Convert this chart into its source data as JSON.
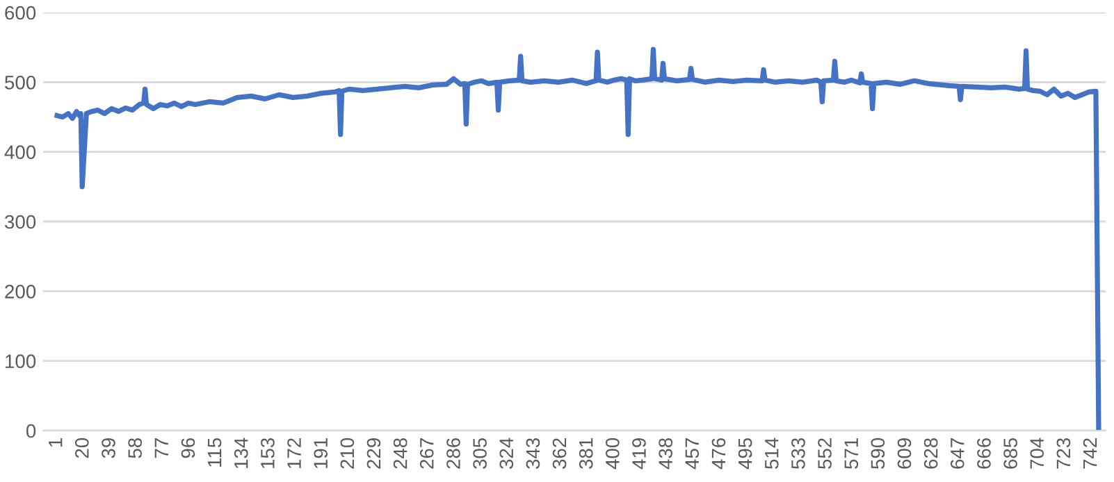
{
  "chart_data": {
    "type": "line",
    "x": [
      1,
      5,
      9,
      12,
      15,
      17,
      18,
      19,
      22,
      26,
      30,
      35,
      40,
      45,
      50,
      55,
      60,
      63,
      64,
      65,
      70,
      75,
      80,
      85,
      90,
      95,
      100,
      110,
      120,
      130,
      140,
      150,
      160,
      170,
      180,
      190,
      200,
      203,
      204,
      205,
      210,
      220,
      230,
      240,
      250,
      260,
      270,
      280,
      285,
      290,
      293,
      294,
      295,
      300,
      305,
      310,
      316,
      317,
      318,
      325,
      332,
      333,
      334,
      340,
      350,
      360,
      370,
      380,
      387,
      388,
      389,
      395,
      400,
      405,
      409,
      410,
      411,
      415,
      420,
      427,
      428,
      429,
      434,
      435,
      436,
      445,
      454,
      455,
      456,
      465,
      475,
      485,
      495,
      506,
      507,
      508,
      515,
      525,
      535,
      545,
      548,
      549,
      550,
      557,
      558,
      559,
      565,
      570,
      576,
      577,
      578,
      584,
      585,
      586,
      595,
      605,
      615,
      625,
      635,
      640,
      647,
      648,
      649,
      660,
      670,
      680,
      690,
      694,
      695,
      696,
      700,
      705,
      710,
      715,
      720,
      725,
      730,
      735,
      740,
      745,
      747
    ],
    "values": [
      452,
      450,
      455,
      448,
      458,
      452,
      455,
      350,
      455,
      458,
      460,
      455,
      462,
      458,
      463,
      460,
      468,
      470,
      490,
      468,
      462,
      468,
      466,
      470,
      465,
      470,
      468,
      472,
      470,
      478,
      480,
      476,
      482,
      478,
      480,
      484,
      486,
      488,
      425,
      487,
      490,
      488,
      490,
      492,
      494,
      492,
      496,
      497,
      505,
      497,
      498,
      440,
      497,
      500,
      502,
      498,
      500,
      460,
      500,
      502,
      503,
      537,
      502,
      500,
      502,
      500,
      503,
      498,
      502,
      543,
      503,
      500,
      503,
      505,
      503,
      425,
      505,
      502,
      503,
      505,
      547,
      505,
      503,
      527,
      505,
      502,
      504,
      520,
      504,
      500,
      503,
      501,
      503,
      502,
      518,
      503,
      500,
      502,
      500,
      503,
      500,
      472,
      502,
      503,
      530,
      502,
      500,
      503,
      499,
      512,
      500,
      498,
      462,
      498,
      500,
      497,
      502,
      498,
      496,
      495,
      494,
      475,
      494,
      493,
      492,
      493,
      490,
      491,
      545,
      490,
      488,
      487,
      482,
      490,
      480,
      484,
      478,
      482,
      486,
      487,
      0
    ],
    "color": "#4472c4",
    "xlim": [
      -9,
      752
    ],
    "ylim": [
      0,
      600
    ],
    "yticks": [
      0,
      100,
      200,
      300,
      400,
      500,
      600
    ],
    "xticks": [
      1,
      20,
      39,
      58,
      77,
      96,
      115,
      134,
      153,
      172,
      191,
      210,
      229,
      248,
      267,
      286,
      305,
      324,
      343,
      362,
      381,
      400,
      419,
      438,
      457,
      476,
      495,
      514,
      533,
      552,
      571,
      590,
      609,
      628,
      647,
      666,
      685,
      704,
      723,
      742
    ],
    "grid": "y",
    "legend": false,
    "marker": "none",
    "line_style": "solid"
  }
}
